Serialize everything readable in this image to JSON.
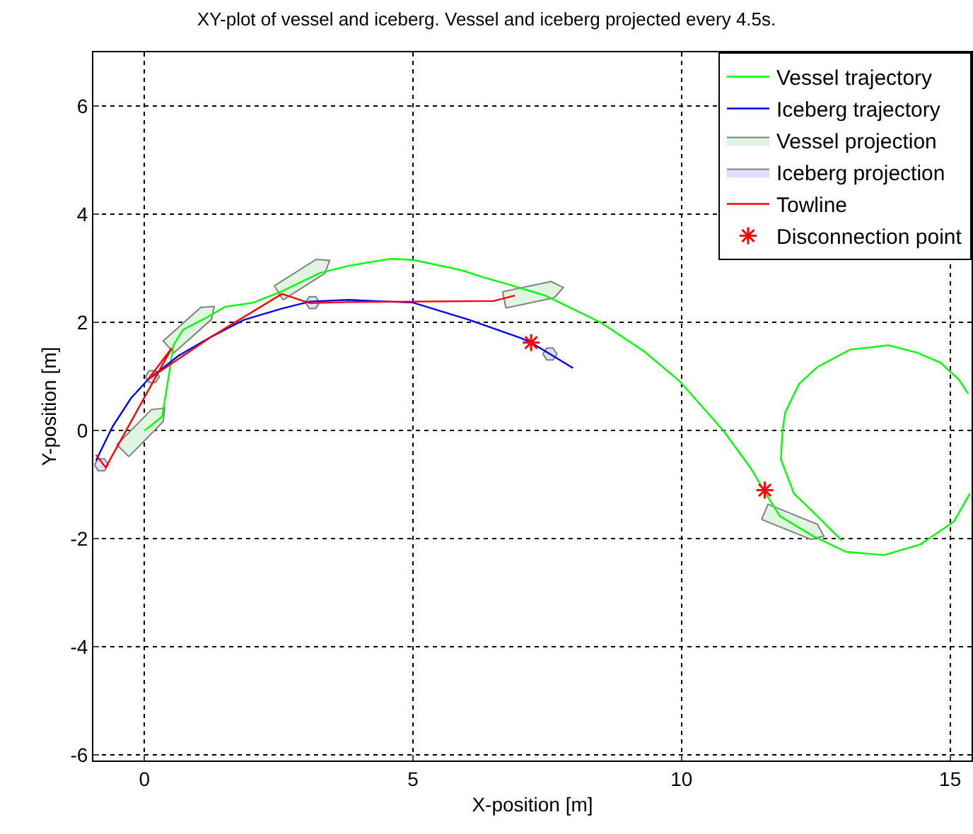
{
  "chart_data": {
    "type": "line",
    "title": "XY-plot of vessel and iceberg. Vessel and iceberg projected every 4.5s.",
    "xlabel": "X-position [m]",
    "ylabel": "Y-position [m]",
    "xlim": [
      -0.95,
      15.4
    ],
    "ylim": [
      -6.1,
      7
    ],
    "xticks": [
      0,
      5,
      10,
      15
    ],
    "yticks": [
      -6,
      -4,
      -2,
      0,
      2,
      4,
      6
    ],
    "grid": true,
    "line_style": "solid",
    "legend": "top right",
    "series": [
      {
        "name": "Vessel trajectory",
        "color": "#00ff00",
        "x": [
          0,
          0.33,
          0.46,
          0.54,
          0.72,
          1.17,
          1.5,
          2.03,
          2.56,
          3.27,
          3.8,
          4.58,
          5.0,
          5.9,
          6.3,
          6.76,
          7.46,
          8.5,
          9.3,
          9.96,
          10.78,
          11.3,
          11.53,
          11.83,
          12.45,
          13.06,
          13.77,
          14.45,
          15.07,
          15.37,
          null,
          15.34,
          15.16,
          14.82,
          14.37,
          13.85,
          13.14,
          12.53,
          12.19,
          11.93,
          11.88,
          11.85,
          12.09,
          12.53,
          12.98
        ],
        "values": [
          0,
          0.26,
          1.05,
          1.58,
          1.87,
          2.1,
          2.29,
          2.37,
          2.58,
          2.92,
          3.05,
          3.18,
          3.16,
          2.97,
          2.84,
          2.71,
          2.5,
          2.0,
          1.47,
          0.92,
          0,
          -0.71,
          -1.1,
          -1.58,
          -1.95,
          -2.24,
          -2.3,
          -2.1,
          -1.68,
          -1.16,
          null,
          0.68,
          0.95,
          1.26,
          1.45,
          1.58,
          1.5,
          1.18,
          0.87,
          0.34,
          0,
          -0.53,
          -1.16,
          -1.58,
          -2.03
        ]
      },
      {
        "name": "Iceberg trajectory",
        "color": "#0000ff",
        "x": [
          -0.9,
          -0.59,
          -0.25,
          0.07,
          0.64,
          1.25,
          1.85,
          2.56,
          3.08,
          3.8,
          5.0,
          6.05,
          7.02,
          7.2,
          7.98
        ],
        "values": [
          -0.55,
          0.08,
          0.6,
          0.95,
          1.39,
          1.74,
          2.05,
          2.26,
          2.39,
          2.42,
          2.37,
          2.05,
          1.71,
          1.63,
          1.16
        ]
      },
      {
        "name": "Vessel projection",
        "color": "#dff5df",
        "type": "area",
        "x": [
          -0.29,
          0.35,
          0.38,
          0.13,
          -0.51,
          -0.29,
          null,
          0.55,
          1.25,
          1.3,
          1.05,
          0.35,
          0.55,
          null,
          2.58,
          3.36,
          3.45,
          3.2,
          2.42,
          2.58,
          null,
          6.73,
          7.63,
          7.8,
          7.57,
          6.67,
          6.73,
          null,
          11.49,
          12.41,
          12.65,
          12.53,
          11.61,
          11.49
        ],
        "values": [
          -0.48,
          0.17,
          0.42,
          0.39,
          -0.26,
          -0.48,
          null,
          1.44,
          2.06,
          2.3,
          2.28,
          1.66,
          1.44,
          null,
          2.42,
          2.91,
          3.15,
          3.17,
          2.68,
          2.42,
          null,
          2.27,
          2.46,
          2.65,
          2.76,
          2.57,
          2.27,
          null,
          -1.64,
          -2.01,
          -1.95,
          -1.73,
          -1.36,
          -1.64
        ]
      },
      {
        "name": "Iceberg projection",
        "color": "#e0e0f8",
        "type": "area",
        "x": [
          -0.93,
          -0.86,
          -0.74,
          -0.67,
          -0.74,
          -0.86,
          -0.93,
          null,
          0.02,
          0.09,
          0.21,
          0.28,
          0.21,
          0.09,
          0.02,
          null,
          3.0,
          3.07,
          3.19,
          3.26,
          3.19,
          3.07,
          3.0,
          null,
          7.42,
          7.49,
          7.61,
          7.68,
          7.61,
          7.49,
          7.42
        ],
        "values": [
          -0.63,
          -0.52,
          -0.52,
          -0.63,
          -0.74,
          -0.74,
          -0.63,
          null,
          1.0,
          1.11,
          1.11,
          1.0,
          0.89,
          0.89,
          1.0,
          null,
          2.37,
          2.48,
          2.48,
          2.37,
          2.26,
          2.26,
          2.37,
          null,
          1.42,
          1.53,
          1.53,
          1.42,
          1.31,
          1.31,
          1.42
        ]
      },
      {
        "name": "Towline",
        "color": "#ff0000",
        "x": [
          -0.9,
          -0.72,
          0.51,
          0.07,
          1.25,
          2.56,
          3.08,
          3.8,
          6.5,
          6.9
        ],
        "values": [
          -0.45,
          -0.68,
          1.53,
          0.95,
          1.74,
          2.53,
          2.36,
          2.38,
          2.4,
          2.5
        ]
      },
      {
        "name": "Disconnection point",
        "color": "#ff0000",
        "type": "scatter",
        "marker": "cross",
        "x": [
          7.2,
          11.55
        ],
        "values": [
          1.63,
          -1.1
        ]
      }
    ]
  }
}
